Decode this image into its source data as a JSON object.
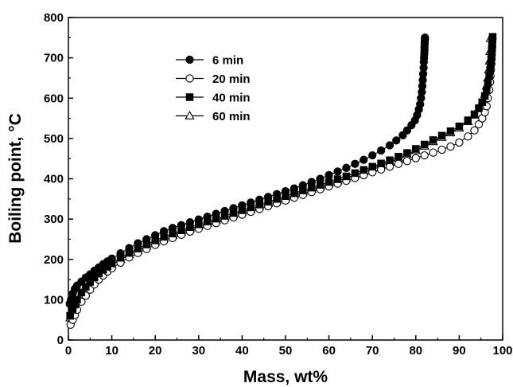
{
  "chart_data": {
    "type": "line",
    "xlabel": "Mass, wt%",
    "ylabel": "Boiling point, °C",
    "xlim": [
      0,
      100
    ],
    "ylim": [
      0,
      800
    ],
    "xticks": [
      "0",
      "10",
      "20",
      "30",
      "40",
      "50",
      "60",
      "70",
      "80",
      "90",
      "100"
    ],
    "yticks": [
      "0",
      "100",
      "200",
      "300",
      "400",
      "500",
      "600",
      "700",
      "800"
    ],
    "grid": false,
    "legend_position": "top-left",
    "series": [
      {
        "name": "6 min",
        "marker": "filled-circle",
        "color": "#000000",
        "x": [
          0.3,
          0.6,
          1,
          1.5,
          2,
          3,
          4,
          5,
          6,
          7,
          8,
          9,
          10,
          12,
          14,
          16,
          18,
          20,
          22,
          24,
          26,
          28,
          30,
          32,
          34,
          36,
          38,
          40,
          42,
          44,
          46,
          48,
          50,
          52,
          54,
          56,
          58,
          60,
          62,
          64,
          66,
          68,
          70,
          72,
          74,
          75.5,
          77,
          78,
          79,
          79.8,
          80.3,
          80.7,
          81.0,
          81.2,
          81.4,
          81.5,
          81.6,
          81.7,
          81.8,
          81.85,
          81.9,
          81.95,
          82.0,
          82.0,
          82.05,
          82.05,
          82.1,
          82.1
        ],
        "y": [
          90,
          100,
          115,
          127,
          135,
          145,
          155,
          163,
          172,
          180,
          188,
          195,
          202,
          215,
          228,
          240,
          250,
          260,
          270,
          278,
          285,
          292,
          299,
          306,
          313,
          320,
          327,
          334,
          341,
          348,
          355,
          362,
          369,
          376,
          384,
          392,
          400,
          409,
          418,
          427,
          437,
          447,
          458,
          470,
          483,
          495,
          508,
          520,
          533,
          545,
          558,
          572,
          585,
          600,
          615,
          630,
          645,
          660,
          675,
          690,
          700,
          710,
          718,
          726,
          734,
          740,
          745,
          750
        ]
      },
      {
        "name": "20 min",
        "marker": "open-circle",
        "color": "#000000",
        "x": [
          0.5,
          1,
          1.5,
          2,
          3,
          4,
          5,
          6,
          7,
          8,
          9,
          10,
          12,
          14,
          16,
          18,
          20,
          22,
          24,
          26,
          28,
          30,
          32,
          34,
          36,
          38,
          40,
          42,
          44,
          46,
          48,
          50,
          52,
          54,
          56,
          58,
          60,
          62,
          64,
          66,
          68,
          70,
          72,
          74,
          76,
          78,
          80,
          82,
          84,
          86,
          88,
          90,
          92,
          93.5,
          94.5,
          95.3,
          95.9,
          96.3,
          96.6,
          96.9,
          97.1,
          97.2,
          97.3,
          97.4,
          97.45,
          97.5,
          97.55,
          97.6,
          97.6,
          97.65
        ],
        "y": [
          38,
          50,
          62,
          75,
          95,
          110,
          125,
          138,
          150,
          160,
          170,
          178,
          192,
          205,
          216,
          226,
          236,
          245,
          253,
          261,
          269,
          276,
          283,
          290,
          297,
          304,
          311,
          318,
          325,
          332,
          339,
          346,
          353,
          360,
          367,
          374,
          381,
          388,
          395,
          402,
          409,
          416,
          423,
          430,
          437,
          444,
          451,
          458,
          465,
          472,
          480,
          490,
          505,
          520,
          535,
          550,
          565,
          580,
          600,
          620,
          640,
          655,
          670,
          685,
          697,
          708,
          718,
          728,
          738,
          748
        ]
      },
      {
        "name": "40 min",
        "marker": "filled-square",
        "color": "#000000",
        "x": [
          0.4,
          1,
          1.5,
          2,
          3,
          4,
          5,
          6,
          7,
          8,
          9,
          10,
          12,
          14,
          16,
          18,
          20,
          22,
          24,
          26,
          28,
          30,
          32,
          34,
          36,
          38,
          40,
          42,
          44,
          46,
          48,
          50,
          52,
          54,
          56,
          58,
          60,
          62,
          64,
          66,
          68,
          70,
          72,
          74,
          76,
          78,
          80,
          82,
          84,
          86,
          88,
          90,
          92,
          93.5,
          94.5,
          95.3,
          95.9,
          96.3,
          96.6,
          96.9,
          97.1,
          97.25,
          97.35,
          97.45,
          97.5,
          97.55,
          97.6,
          97.65,
          97.7
        ],
        "y": [
          60,
          75,
          88,
          100,
          118,
          132,
          144,
          155,
          165,
          174,
          182,
          190,
          204,
          216,
          227,
          237,
          247,
          256,
          264,
          272,
          280,
          287,
          294,
          301,
          308,
          315,
          322,
          329,
          336,
          343,
          350,
          357,
          364,
          371,
          378,
          385,
          392,
          399,
          406,
          414,
          422,
          430,
          438,
          446,
          455,
          464,
          474,
          485,
          496,
          507,
          518,
          530,
          545,
          560,
          575,
          590,
          605,
          620,
          638,
          655,
          670,
          685,
          697,
          708,
          718,
          728,
          738,
          746,
          752
        ]
      },
      {
        "name": "60 min",
        "marker": "open-triangle",
        "color": "#000000",
        "x": [
          0.4,
          1,
          1.5,
          2,
          3,
          4,
          5,
          6,
          7,
          8,
          9,
          10,
          12,
          14,
          16,
          18,
          20,
          22,
          24,
          26,
          28,
          30,
          32,
          34,
          36,
          38,
          40,
          42,
          44,
          46,
          48,
          50,
          52,
          54,
          56,
          58,
          60,
          62,
          64,
          66,
          68,
          70,
          72,
          74,
          76,
          78,
          80,
          82,
          84,
          86,
          88,
          90,
          92,
          93.5,
          94.5,
          95.3,
          95.9,
          96.3,
          96.6,
          96.8,
          97.0,
          97.1,
          97.2
        ],
        "y": [
          55,
          70,
          84,
          96,
          114,
          128,
          140,
          151,
          161,
          170,
          178,
          186,
          200,
          212,
          223,
          233,
          243,
          252,
          260,
          268,
          276,
          283,
          290,
          297,
          304,
          311,
          318,
          325,
          332,
          339,
          346,
          353,
          360,
          367,
          374,
          381,
          388,
          395,
          402,
          410,
          418,
          426,
          434,
          442,
          451,
          460,
          470,
          481,
          492,
          503,
          514,
          526,
          542,
          558,
          574,
          592,
          610,
          630,
          650,
          670,
          692,
          716,
          748
        ]
      }
    ]
  }
}
